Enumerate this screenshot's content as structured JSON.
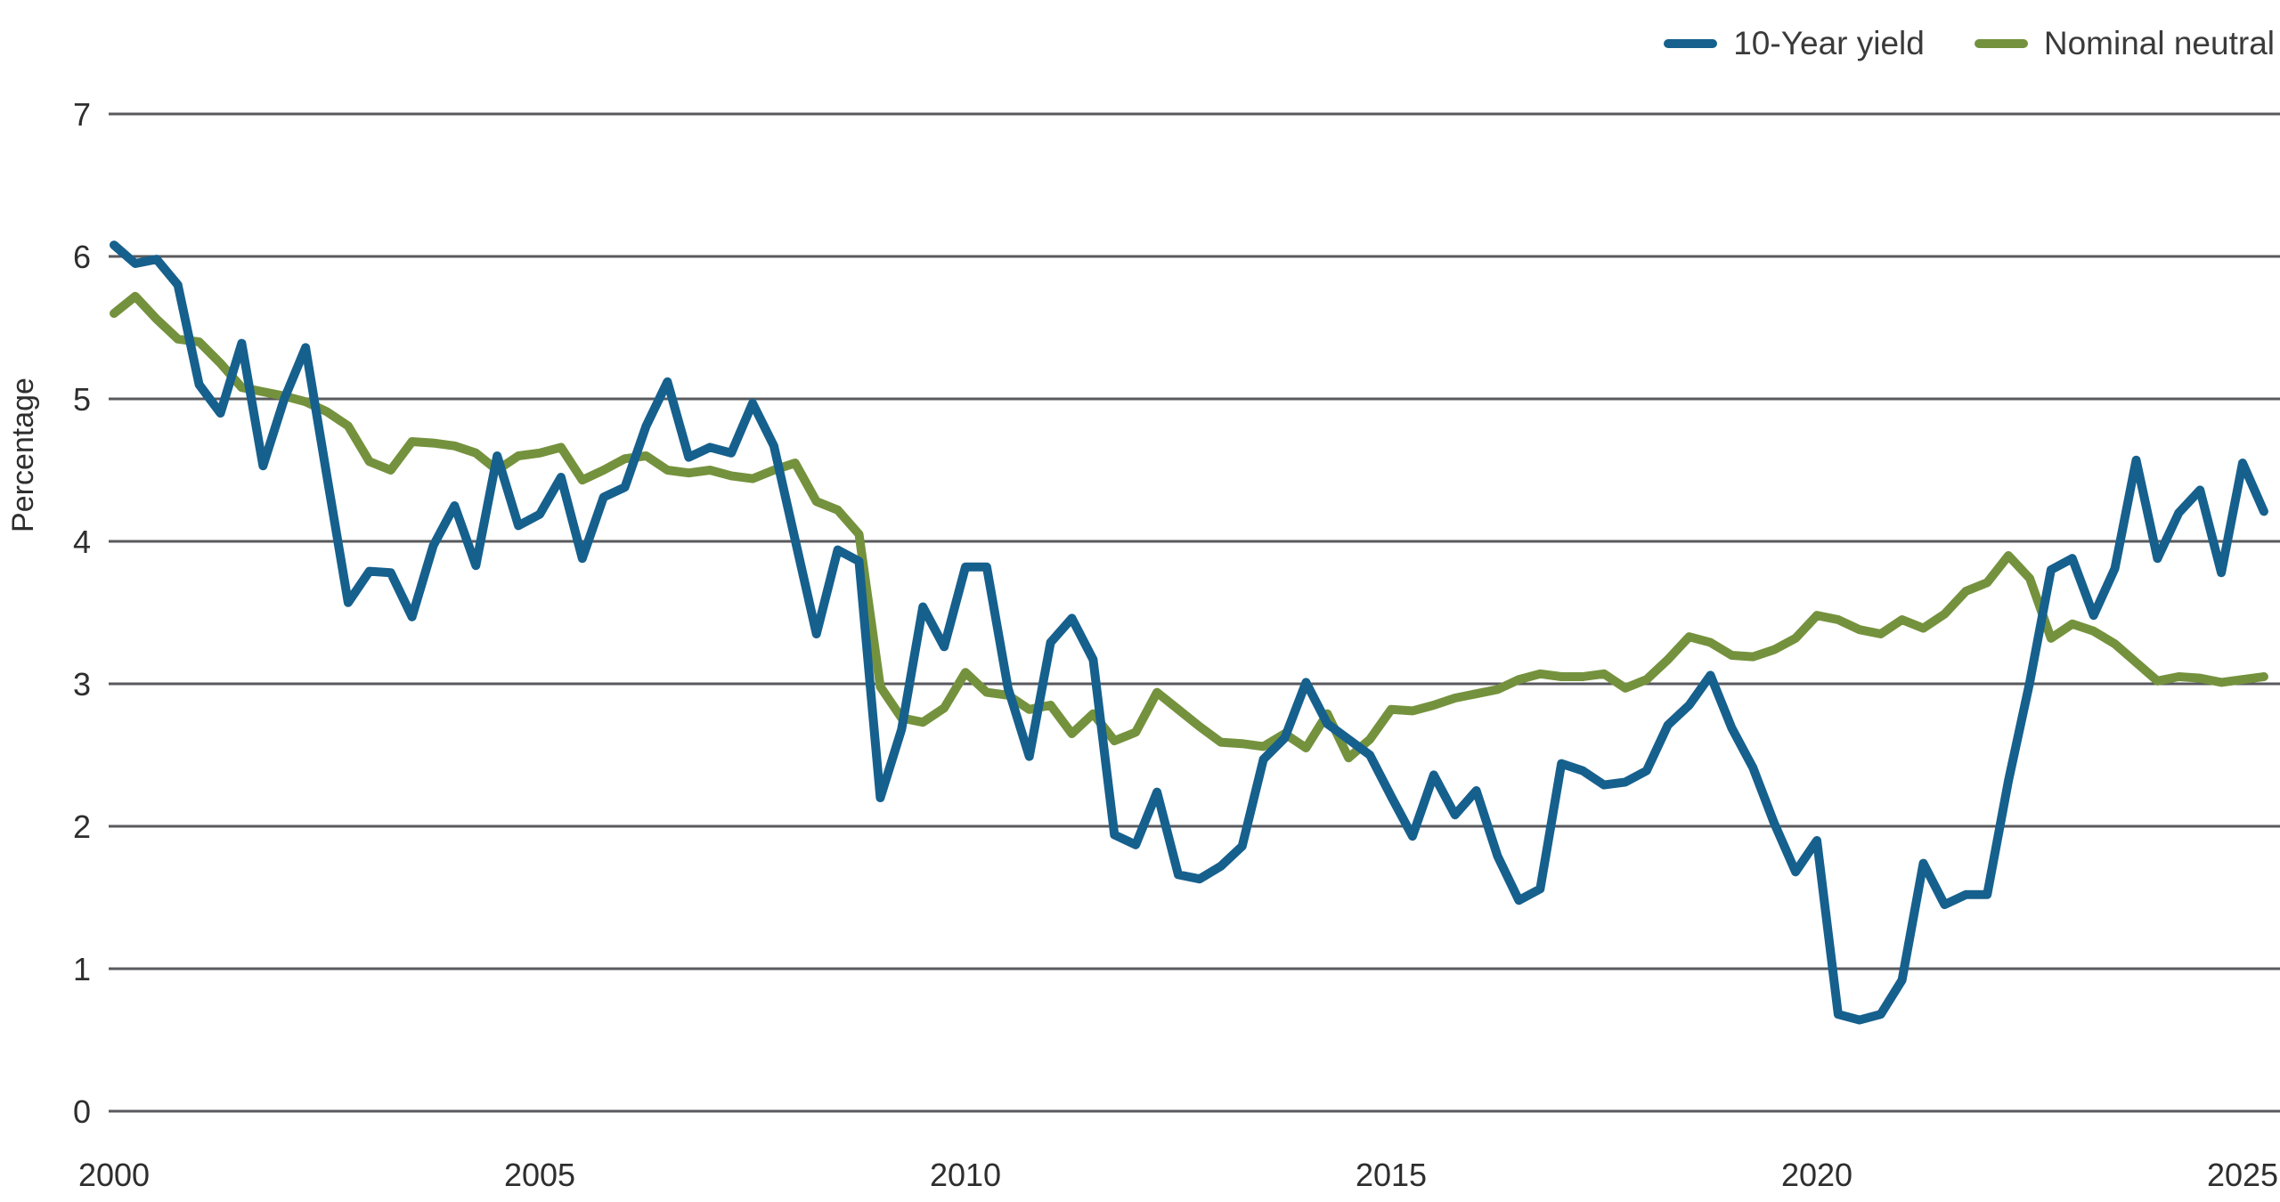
{
  "chart_data": {
    "type": "line",
    "title": "",
    "xlabel": "",
    "ylabel": "Percentage",
    "ylim": [
      0,
      7
    ],
    "xlim": [
      2000,
      2025.45
    ],
    "y_ticks": [
      0,
      1,
      2,
      3,
      4,
      5,
      6,
      7
    ],
    "x_ticks": [
      2000,
      2005,
      2010,
      2015,
      2020,
      2025
    ],
    "grid": "horizontal",
    "legend_position": "top-right",
    "x_start": 2000,
    "x_step": 0.25,
    "x": [
      2000,
      2000.25,
      2000.5,
      2000.75,
      2001,
      2001.25,
      2001.5,
      2001.75,
      2002,
      2002.25,
      2002.5,
      2002.75,
      2003,
      2003.25,
      2003.5,
      2003.75,
      2004,
      2004.25,
      2004.5,
      2004.75,
      2005,
      2005.25,
      2005.5,
      2005.75,
      2006,
      2006.25,
      2006.5,
      2006.75,
      2007,
      2007.25,
      2007.5,
      2007.75,
      2008,
      2008.25,
      2008.5,
      2008.75,
      2009,
      2009.25,
      2009.5,
      2009.75,
      2010,
      2010.25,
      2010.5,
      2010.75,
      2011,
      2011.25,
      2011.5,
      2011.75,
      2012,
      2012.25,
      2012.5,
      2012.75,
      2013,
      2013.25,
      2013.5,
      2013.75,
      2014,
      2014.25,
      2014.5,
      2014.75,
      2015,
      2015.25,
      2015.5,
      2015.75,
      2016,
      2016.25,
      2016.5,
      2016.75,
      2017,
      2017.25,
      2017.5,
      2017.75,
      2018,
      2018.25,
      2018.5,
      2018.75,
      2019,
      2019.25,
      2019.5,
      2019.75,
      2020,
      2020.25,
      2020.5,
      2020.75,
      2021,
      2021.25,
      2021.5,
      2021.75,
      2022,
      2022.25,
      2022.5,
      2022.75,
      2023,
      2023.25,
      2023.5,
      2023.75,
      2024,
      2024.25,
      2024.5,
      2024.75,
      2025,
      2025.25
    ],
    "series": [
      {
        "name": "10-Year yield",
        "color": "#16608D",
        "values": [
          6.08,
          5.95,
          5.98,
          5.8,
          5.1,
          4.9,
          5.39,
          4.53,
          5.0,
          5.36,
          4.46,
          3.57,
          3.79,
          3.78,
          3.47,
          3.97,
          4.25,
          3.83,
          4.6,
          4.11,
          4.19,
          4.45,
          3.88,
          4.31,
          4.38,
          4.81,
          5.12,
          4.59,
          4.66,
          4.62,
          4.97,
          4.67,
          4.01,
          3.35,
          3.94,
          3.86,
          2.2,
          2.68,
          3.54,
          3.26,
          3.82,
          3.82,
          2.97,
          2.49,
          3.29,
          3.46,
          3.17,
          1.94,
          1.87,
          2.24,
          1.66,
          1.63,
          1.72,
          1.86,
          2.47,
          2.62,
          3.01,
          2.72,
          2.61,
          2.5,
          2.21,
          1.93,
          2.36,
          2.08,
          2.25,
          1.79,
          1.48,
          1.56,
          2.44,
          2.39,
          2.29,
          2.31,
          2.39,
          2.71,
          2.85,
          3.06,
          2.69,
          2.41,
          2.02,
          1.68,
          1.9,
          0.68,
          0.64,
          0.68,
          0.92,
          1.74,
          1.45,
          1.52,
          1.52,
          2.32,
          3.01,
          3.8,
          3.88,
          3.48,
          3.81,
          4.57,
          3.88,
          4.2,
          4.36,
          3.78,
          4.55,
          4.21
        ]
      },
      {
        "name": "Nominal neutral",
        "color": "#74923D",
        "values": [
          5.6,
          5.72,
          5.56,
          5.42,
          5.4,
          5.25,
          5.08,
          5.05,
          5.02,
          4.98,
          4.91,
          4.81,
          4.56,
          4.5,
          4.7,
          4.69,
          4.67,
          4.62,
          4.5,
          4.6,
          4.62,
          4.66,
          4.43,
          4.5,
          4.58,
          4.6,
          4.5,
          4.48,
          4.5,
          4.46,
          4.44,
          4.5,
          4.55,
          4.28,
          4.22,
          4.05,
          2.98,
          2.76,
          2.73,
          2.83,
          3.08,
          2.94,
          2.92,
          2.82,
          2.85,
          2.65,
          2.79,
          2.6,
          2.66,
          2.94,
          2.82,
          2.7,
          2.59,
          2.58,
          2.56,
          2.65,
          2.55,
          2.79,
          2.48,
          2.61,
          2.82,
          2.81,
          2.85,
          2.9,
          2.93,
          2.96,
          3.03,
          3.07,
          3.05,
          3.05,
          3.07,
          2.97,
          3.03,
          3.17,
          3.33,
          3.29,
          3.2,
          3.19,
          3.24,
          3.32,
          3.48,
          3.45,
          3.38,
          3.35,
          3.45,
          3.39,
          3.49,
          3.65,
          3.71,
          3.9,
          3.74,
          3.32,
          3.42,
          3.37,
          3.28,
          3.15,
          3.02,
          3.05,
          3.04,
          3.01,
          3.03,
          3.05
        ]
      }
    ]
  },
  "colors": {
    "gridline": "#595A5E",
    "tick_text": "#2e2e2e",
    "legend_text": "#3a3a3a",
    "background": "#FFFFFF"
  }
}
